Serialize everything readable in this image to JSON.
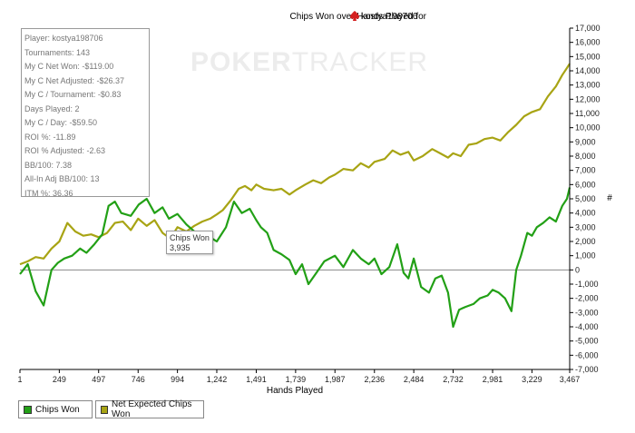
{
  "watermark": {
    "bold": "POKER",
    "thin": "TRACKER"
  },
  "stats": [
    "Player: kostya198706",
    "Tournaments: 143",
    "My C Net Won: -$119.00",
    "My C Net Adjusted: -$26.37",
    "My C / Tournament: -$0.83",
    "Days Played: 2",
    "My C / Day: -$59.50",
    "ROI %: -11.89",
    "ROI % Adjusted: -2.63",
    "BB/100: 7.38",
    "All-In Adj BB/100: 13",
    "ITM %: 36.36"
  ],
  "tooltip": {
    "label": "Chips Won",
    "value": "3,935"
  },
  "legend": {
    "chips_won": "Chips Won",
    "net_expected": "Net Expected Chips Won"
  },
  "colors": {
    "chips_won": "#22a016",
    "net_expected": "#a8a414",
    "axis": "#000000"
  },
  "chart_data": {
    "type": "line",
    "title_prefix": "Chips Won over Hands Played for",
    "title_player": "kostya198706",
    "xlabel": "Hands Played",
    "ylabel": "#",
    "xlim": [
      1,
      3467
    ],
    "ylim": [
      -7000,
      17000
    ],
    "x_ticks": [
      1,
      249,
      497,
      746,
      994,
      1242,
      1491,
      1739,
      1987,
      2236,
      2484,
      2732,
      2981,
      3229,
      3467
    ],
    "x_tick_labels": [
      "1",
      "249",
      "497",
      "746",
      "994",
      "1,242",
      "1,491",
      "1,739",
      "1,987",
      "2,236",
      "2,484",
      "2,732",
      "2,981",
      "3,229",
      "3,467"
    ],
    "y_ticks": [
      17000,
      16000,
      15000,
      14000,
      13000,
      12000,
      11000,
      10000,
      9000,
      8000,
      7000,
      6000,
      5000,
      4000,
      3000,
      2000,
      1000,
      0,
      -1000,
      -2000,
      -3000,
      -4000,
      -5000,
      -6000,
      -7000
    ],
    "y_tick_labels": [
      "17,000",
      "16,000",
      "15,000",
      "14,000",
      "13,000",
      "12,000",
      "11,000",
      "10,000",
      "9,000",
      "8,000",
      "7,000",
      "6,000",
      "5,000",
      "4,000",
      "3,000",
      "2,000",
      "1,000",
      "0",
      "-1,000",
      "-2,000",
      "-3,000",
      "-4,000",
      "-5,000",
      "-6,000",
      "-7,000"
    ],
    "series": [
      {
        "name": "Chips Won",
        "x": [
          1,
          50,
          100,
          150,
          200,
          240,
          280,
          330,
          380,
          420,
          470,
          520,
          560,
          600,
          640,
          700,
          750,
          800,
          850,
          900,
          940,
          994,
          1050,
          1100,
          1150,
          1200,
          1242,
          1300,
          1350,
          1400,
          1450,
          1491,
          1520,
          1560,
          1600,
          1650,
          1700,
          1739,
          1780,
          1820,
          1870,
          1920,
          1987,
          2040,
          2100,
          2150,
          2200,
          2236,
          2280,
          2330,
          2380,
          2420,
          2450,
          2484,
          2530,
          2580,
          2620,
          2660,
          2700,
          2732,
          2770,
          2810,
          2860,
          2900,
          2950,
          2981,
          3020,
          3060,
          3100,
          3130,
          3160,
          3200,
          3229,
          3260,
          3300,
          3340,
          3380,
          3420,
          3450,
          3467
        ],
        "y": [
          -300,
          400,
          -1500,
          -2500,
          0,
          500,
          800,
          1000,
          1500,
          1200,
          1800,
          2500,
          4500,
          4800,
          4000,
          3800,
          4600,
          5000,
          4000,
          4400,
          3600,
          3935,
          3200,
          2700,
          2600,
          2300,
          2000,
          3000,
          4800,
          4000,
          4300,
          3500,
          3000,
          2600,
          1400,
          1100,
          700,
          -300,
          400,
          -1000,
          -200,
          600,
          1000,
          200,
          1400,
          800,
          400,
          800,
          -300,
          200,
          1800,
          -200,
          -600,
          800,
          -1200,
          -1600,
          -600,
          -400,
          -1600,
          -4000,
          -2800,
          -2600,
          -2400,
          -2000,
          -1800,
          -1400,
          -1600,
          -2000,
          -2900,
          0,
          1000,
          2600,
          2400,
          3000,
          3300,
          3700,
          3400,
          4500,
          5000,
          5800
        ]
      },
      {
        "name": "Net Expected Chips Won",
        "x": [
          1,
          50,
          100,
          150,
          200,
          249,
          300,
          350,
          400,
          450,
          497,
          550,
          600,
          650,
          700,
          746,
          800,
          850,
          900,
          950,
          994,
          1050,
          1100,
          1150,
          1200,
          1242,
          1280,
          1330,
          1380,
          1420,
          1460,
          1491,
          1540,
          1600,
          1650,
          1700,
          1739,
          1800,
          1850,
          1900,
          1950,
          1987,
          2040,
          2100,
          2150,
          2200,
          2236,
          2300,
          2350,
          2400,
          2450,
          2484,
          2540,
          2600,
          2650,
          2700,
          2732,
          2780,
          2830,
          2880,
          2930,
          2981,
          3030,
          3080,
          3130,
          3180,
          3229,
          3280,
          3330,
          3380,
          3420,
          3450,
          3467
        ],
        "y": [
          400,
          600,
          900,
          800,
          1500,
          2000,
          3300,
          2700,
          2400,
          2500,
          2300,
          2600,
          3300,
          3400,
          2800,
          3600,
          3100,
          3500,
          2600,
          2200,
          3000,
          2700,
          3100,
          3400,
          3600,
          3900,
          4200,
          4900,
          5700,
          5900,
          5600,
          6000,
          5700,
          5600,
          5700,
          5300,
          5600,
          6000,
          6300,
          6100,
          6500,
          6700,
          7100,
          7000,
          7500,
          7200,
          7600,
          7800,
          8400,
          8100,
          8300,
          7700,
          8000,
          8500,
          8200,
          7900,
          8200,
          8000,
          8800,
          8900,
          9200,
          9300,
          9100,
          9700,
          10200,
          10800,
          11100,
          11300,
          12200,
          12900,
          13700,
          14200,
          14500
        ]
      }
    ]
  }
}
